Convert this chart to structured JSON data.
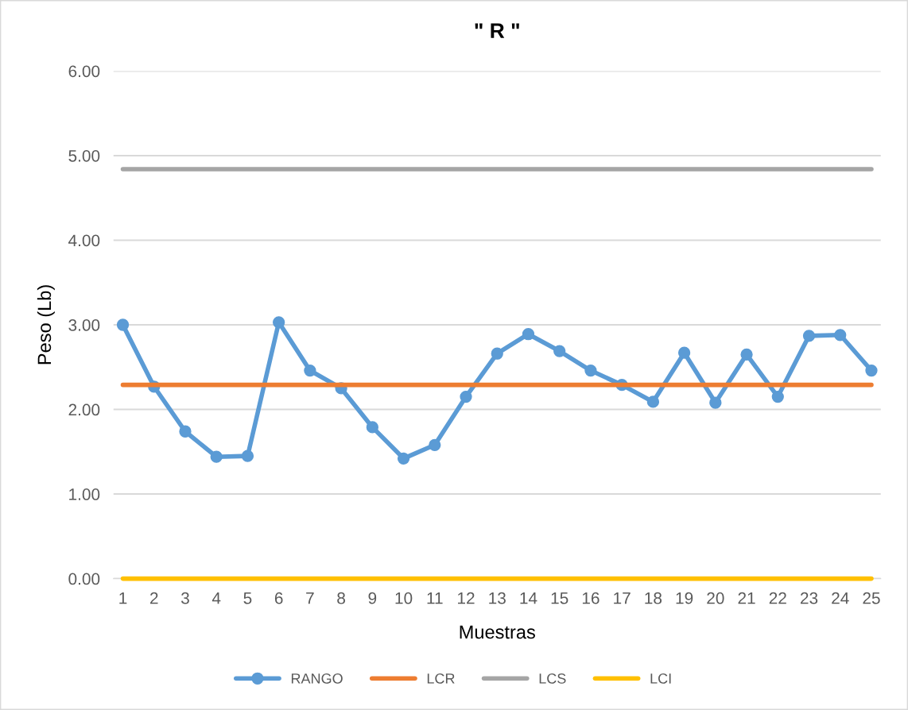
{
  "chart_data": {
    "type": "line",
    "title": "\" R \"",
    "xlabel": "Muestras",
    "ylabel": "Peso (Lb)",
    "categories": [
      "1",
      "2",
      "3",
      "4",
      "5",
      "6",
      "7",
      "8",
      "9",
      "10",
      "11",
      "12",
      "13",
      "14",
      "15",
      "16",
      "17",
      "18",
      "19",
      "20",
      "21",
      "22",
      "23",
      "24",
      "25"
    ],
    "series": [
      {
        "name": "RANGO",
        "color": "#5b9bd5",
        "marker": "circle",
        "values": [
          3.0,
          2.27,
          1.74,
          1.44,
          1.45,
          3.03,
          2.46,
          2.25,
          1.79,
          1.42,
          1.58,
          2.15,
          2.66,
          2.89,
          2.69,
          2.46,
          2.29,
          2.09,
          2.67,
          2.08,
          2.65,
          2.15,
          2.87,
          2.88,
          2.46
        ]
      },
      {
        "name": "LCR",
        "color": "#ed7d31",
        "marker": "none",
        "values": [
          2.29,
          2.29,
          2.29,
          2.29,
          2.29,
          2.29,
          2.29,
          2.29,
          2.29,
          2.29,
          2.29,
          2.29,
          2.29,
          2.29,
          2.29,
          2.29,
          2.29,
          2.29,
          2.29,
          2.29,
          2.29,
          2.29,
          2.29,
          2.29,
          2.29
        ]
      },
      {
        "name": "LCS",
        "color": "#a5a5a5",
        "marker": "none",
        "values": [
          4.84,
          4.84,
          4.84,
          4.84,
          4.84,
          4.84,
          4.84,
          4.84,
          4.84,
          4.84,
          4.84,
          4.84,
          4.84,
          4.84,
          4.84,
          4.84,
          4.84,
          4.84,
          4.84,
          4.84,
          4.84,
          4.84,
          4.84,
          4.84,
          4.84
        ]
      },
      {
        "name": "LCI",
        "color": "#ffc000",
        "marker": "none",
        "values": [
          0,
          0,
          0,
          0,
          0,
          0,
          0,
          0,
          0,
          0,
          0,
          0,
          0,
          0,
          0,
          0,
          0,
          0,
          0,
          0,
          0,
          0,
          0,
          0,
          0
        ]
      }
    ],
    "ylim": [
      0,
      6
    ],
    "yticks": [
      {
        "value": 0,
        "label": "0.00"
      },
      {
        "value": 1,
        "label": "1.00"
      },
      {
        "value": 2,
        "label": "2.00"
      },
      {
        "value": 3,
        "label": "3.00"
      },
      {
        "value": 4,
        "label": "4.00"
      },
      {
        "value": 5,
        "label": "5.00"
      },
      {
        "value": 6,
        "label": "6.00"
      }
    ],
    "grid": "y",
    "legend": "bottom",
    "line_style": "solid"
  }
}
